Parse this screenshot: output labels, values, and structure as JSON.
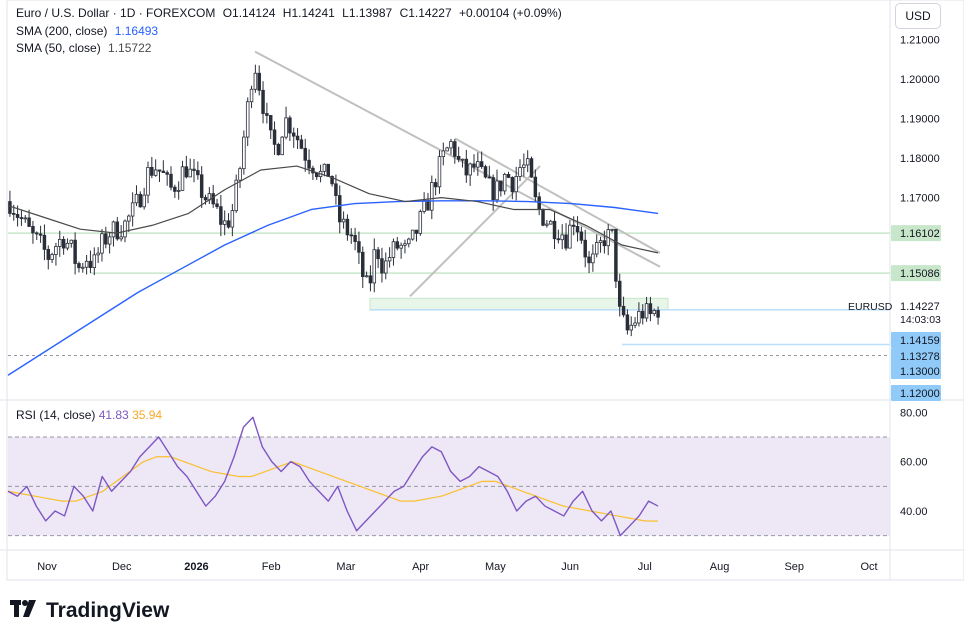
{
  "header": {
    "symbol_title": "Euro / U.S. Dollar · 1D · FOREXCOM",
    "open": "O1.14124",
    "high": "H1.14241",
    "low": "L1.13987",
    "close": "C1.14227",
    "change": "+0.00104 (+0.09%)",
    "sma200_label": "SMA (200, close)",
    "sma200_value": "1.16493",
    "sma50_label": "SMA (50, close)",
    "sma50_value": "1.15722",
    "rsi_label": "RSI (14, close)",
    "rsi_value": "41.83",
    "rsi_ma_value": "35.94",
    "currency_button": "USD"
  },
  "price_axis": {
    "ticks": [
      "1.21000",
      "1.20000",
      "1.19000",
      "1.18000",
      "1.17000",
      "1.13000",
      "1.12000"
    ],
    "level_labels": [
      "1.16102",
      "1.15086",
      "1.14159",
      "1.13278"
    ],
    "symbol_label": "EURUSD",
    "last_price": "1.14227",
    "countdown": "14:03:03"
  },
  "rsi_axis": {
    "ticks": [
      "80.00",
      "60.00",
      "40.00"
    ]
  },
  "time_axis": {
    "labels": [
      "Nov",
      "Dec",
      "2026",
      "Feb",
      "Mar",
      "Apr",
      "May",
      "Jun",
      "Jul",
      "Aug",
      "Sep",
      "Oct"
    ]
  },
  "brand": {
    "name": "TradingView"
  },
  "colors": {
    "up": "#089981",
    "down": "#131722",
    "candle": "#2a2e39",
    "sma200": "#2962ff",
    "sma50": "#4a4a4a",
    "rsi": "#7e57c2",
    "rsi_ma": "#fbc02d",
    "rsi_band": "#ede7f6",
    "level_green": "#c8e6c9",
    "level_blue": "#bbdefb",
    "label_green": "#c8e6c9",
    "label_blue": "#90caf9",
    "trendline": "#c0c0c0"
  },
  "chart_data": [
    {
      "type": "candlestick",
      "title": "Euro / U.S. Dollar · 1D · FOREXCOM",
      "ylim": [
        1.12,
        1.215
      ],
      "x_labels": [
        "Nov",
        "Dec",
        "2026",
        "Feb",
        "Mar",
        "Apr",
        "May",
        "Jun",
        "Jul",
        "Aug",
        "Sep",
        "Oct"
      ],
      "price_path": [
        1.169,
        1.166,
        1.163,
        1.16,
        1.158,
        1.155,
        1.158,
        1.16,
        1.157,
        1.152,
        1.155,
        1.153,
        1.158,
        1.161,
        1.162,
        1.163,
        1.166,
        1.17,
        1.176,
        1.178,
        1.176,
        1.172,
        1.174,
        1.178,
        1.175,
        1.172,
        1.169,
        1.167,
        1.163,
        1.165,
        1.175,
        1.19,
        1.205,
        1.196,
        1.185,
        1.182,
        1.19,
        1.188,
        1.184,
        1.18,
        1.178,
        1.175,
        1.177,
        1.165,
        1.162,
        1.16,
        1.152,
        1.146,
        1.158,
        1.152,
        1.156,
        1.158,
        1.156,
        1.16,
        1.165,
        1.17,
        1.176,
        1.181,
        1.184,
        1.178,
        1.176,
        1.178,
        1.175,
        1.172,
        1.172,
        1.176,
        1.174,
        1.178,
        1.177,
        1.168,
        1.165,
        1.163,
        1.162,
        1.16,
        1.165,
        1.16,
        1.152,
        1.156,
        1.16,
        1.16,
        1.14,
        1.136,
        1.139,
        1.141,
        1.14,
        1.142
      ],
      "sma200": [
        1.125,
        1.132,
        1.139,
        1.146,
        1.152,
        1.158,
        1.163,
        1.167,
        1.1685,
        1.169,
        1.1692,
        1.1692,
        1.169,
        1.1685,
        1.1675,
        1.166
      ],
      "sma50": [
        1.168,
        1.165,
        1.162,
        1.161,
        1.163,
        1.166,
        1.172,
        1.177,
        1.178,
        1.175,
        1.171,
        1.169,
        1.17,
        1.169,
        1.167,
        1.167,
        1.163,
        1.158,
        1.156
      ],
      "horizontal_levels": [
        1.16102,
        1.15086,
        1.14159,
        1.13278,
        1.13
      ],
      "trendline": {
        "from": 1.207,
        "to": 1.1525
      }
    },
    {
      "type": "line",
      "title": "RSI (14, close)",
      "ylim": [
        25,
        85
      ],
      "levels": [
        70,
        50,
        30
      ],
      "series": [
        {
          "name": "RSI",
          "values": [
            48,
            46,
            50,
            42,
            36,
            40,
            38,
            50,
            46,
            40,
            54,
            48,
            52,
            56,
            62,
            66,
            70,
            64,
            58,
            54,
            48,
            42,
            46,
            52,
            62,
            74,
            78,
            66,
            60,
            56,
            60,
            58,
            52,
            48,
            44,
            50,
            40,
            32,
            36,
            40,
            44,
            48,
            50,
            56,
            62,
            66,
            64,
            56,
            52,
            54,
            58,
            56,
            54,
            48,
            40,
            44,
            46,
            42,
            40,
            38,
            44,
            48,
            40,
            36,
            40,
            30,
            34,
            38,
            44,
            42
          ],
          "role": "rsi"
        },
        {
          "name": "RSI MA",
          "values": [
            48,
            47,
            46,
            45,
            44,
            44,
            46,
            48,
            52,
            56,
            60,
            62,
            62,
            60,
            58,
            56,
            55,
            54,
            54,
            56,
            58,
            60,
            58,
            56,
            54,
            52,
            50,
            48,
            46,
            44,
            44,
            45,
            46,
            48,
            50,
            52,
            52,
            50,
            48,
            46,
            44,
            42,
            41,
            40,
            39,
            38,
            37,
            36,
            35.9
          ],
          "role": "ma"
        }
      ]
    }
  ]
}
